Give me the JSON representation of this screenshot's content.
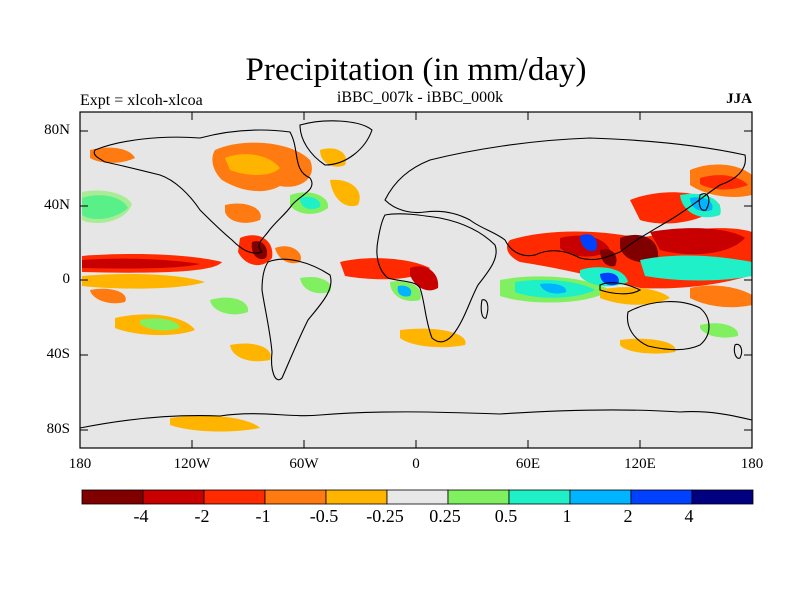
{
  "title": "Precipitation (in mm/day)",
  "subtitle_left": "Expt = xlcoh-xlcoa",
  "subtitle_center": "iBBC_007k - iBBC_000k",
  "subtitle_right": "JJA",
  "lat_labels": [
    "80N",
    "40N",
    "0",
    "40S",
    "80S"
  ],
  "lon_labels": [
    "180",
    "120W",
    "60W",
    "0",
    "60E",
    "120E",
    "180"
  ],
  "colorbar": {
    "colors": [
      "#800000",
      "#c80000",
      "#ff2a00",
      "#ff7a10",
      "#ffb400",
      "#e8e8e8",
      "#80f060",
      "#20f0c8",
      "#00b4ff",
      "#0040ff",
      "#000080"
    ],
    "labels": [
      "-4",
      "-2",
      "-1",
      "-0.5",
      "-0.25",
      "0.25",
      "0.5",
      "1",
      "2",
      "4"
    ]
  },
  "colors": {
    "ocean_background": "#e6e6e6",
    "coast": "#000000"
  }
}
